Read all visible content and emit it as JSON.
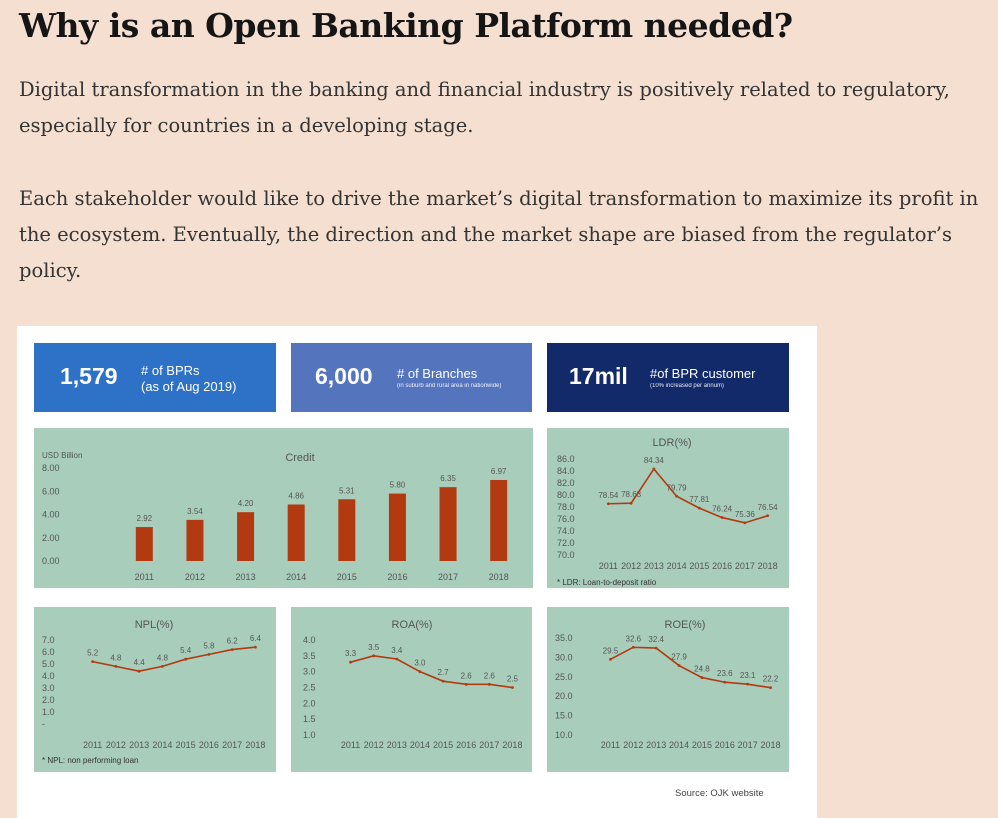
{
  "heading": "Why is an Open Banking Platform needed?",
  "paragraphs": [
    "Digital transformation in the banking and financial industry is positively related to regulatory, especially for countries in a developing stage.",
    "Each stakeholder would like to drive the market’s digital transformation to maximize its profit in the ecosystem. Eventually, the direction and the market shape are biased from the regulator’s policy."
  ],
  "stats": [
    {
      "value": "1,579",
      "label_line1": "# of BPRs",
      "label_line2": "(as of Aug 2019)",
      "sub": "",
      "color": "#2e72c8"
    },
    {
      "value": "6,000",
      "label_line1": "# of Branches",
      "label_line2": "",
      "sub": "(in suburb and rural area in nationwide)",
      "color": "#5474be"
    },
    {
      "value": "17mil",
      "label_line1": "#of BPR customer",
      "label_line2": "",
      "sub": "(10% increased per annum)",
      "color": "#12296a"
    }
  ],
  "source": "Source: OJK website",
  "chart_data": [
    {
      "type": "bar",
      "title": "Credit",
      "ylabel": "USD Billion",
      "categories": [
        "2011",
        "2012",
        "2013",
        "2014",
        "2015",
        "2016",
        "2017",
        "2018"
      ],
      "values": [
        2.92,
        3.54,
        4.2,
        4.86,
        5.31,
        5.8,
        6.35,
        6.97
      ],
      "value_labels": [
        "2.92",
        "3.54",
        "4.20",
        "4.86",
        "5.31",
        "5.80",
        "6.35",
        "6.97"
      ],
      "yticks": [
        "8.00",
        "6.00",
        "4.00",
        "2.00",
        "0.00"
      ],
      "ylim": [
        0,
        8
      ],
      "bar_color": "#b23a10"
    },
    {
      "type": "line",
      "title": "LDR(%)",
      "x": [
        "2011",
        "2012",
        "2013",
        "2014",
        "2015",
        "2016",
        "2017",
        "2018"
      ],
      "values": [
        78.54,
        78.63,
        84.34,
        79.79,
        77.81,
        76.24,
        75.36,
        76.54
      ],
      "value_labels": [
        "78.54",
        "78.63",
        "84.34",
        "79.79",
        "77.81",
        "76.24",
        "75.36",
        "76.54"
      ],
      "yticks": [
        "86.0",
        "84.0",
        "82.0",
        "80.0",
        "78.0",
        "76.0",
        "74.0",
        "72.0",
        "70.0"
      ],
      "ylim": [
        70,
        86
      ],
      "note": "* LDR: Loan-to-deposit ratio",
      "line_color": "#b23a10"
    },
    {
      "type": "line",
      "title": "NPL(%)",
      "x": [
        "2011",
        "2012",
        "2013",
        "2014",
        "2015",
        "2016",
        "2017",
        "2018"
      ],
      "values": [
        5.2,
        4.8,
        4.4,
        4.8,
        5.4,
        5.8,
        6.2,
        6.4
      ],
      "value_labels": [
        "5.2",
        "4.8",
        "4.4",
        "4.8",
        "5.4",
        "5.8",
        "6.2",
        "6.4"
      ],
      "yticks": [
        "7.0",
        "6.0",
        "5.0",
        "4.0",
        "3.0",
        "2.0",
        "1.0",
        "-"
      ],
      "ylim": [
        0,
        7
      ],
      "note": "* NPL: non performing loan",
      "line_color": "#b23a10"
    },
    {
      "type": "line",
      "title": "ROA(%)",
      "x": [
        "2011",
        "2012",
        "2013",
        "2014",
        "2015",
        "2016",
        "2017",
        "2018"
      ],
      "values": [
        3.3,
        3.5,
        3.4,
        3.0,
        2.7,
        2.6,
        2.6,
        2.5
      ],
      "value_labels": [
        "3.3",
        "3.5",
        "3.4",
        "3.0",
        "2.7",
        "2.6",
        "2.6",
        "2.5"
      ],
      "yticks": [
        "4.0",
        "3.5",
        "3.0",
        "2.5",
        "2.0",
        "1.5",
        "1.0"
      ],
      "ylim": [
        1,
        4
      ],
      "note": "",
      "line_color": "#b23a10"
    },
    {
      "type": "line",
      "title": "ROE(%)",
      "x": [
        "2011",
        "2012",
        "2013",
        "2014",
        "2015",
        "2016",
        "2017",
        "2018"
      ],
      "values": [
        29.5,
        32.6,
        32.4,
        27.9,
        24.8,
        23.6,
        23.1,
        22.2
      ],
      "value_labels": [
        "29.5",
        "32.6",
        "32.4",
        "27.9",
        "24.8",
        "23.6",
        "23.1",
        "22.2"
      ],
      "yticks": [
        "35.0",
        "30.0",
        "25.0",
        "20.0",
        "15.0",
        "10.0"
      ],
      "ylim": [
        10,
        35
      ],
      "note": "",
      "line_color": "#b23a10"
    }
  ]
}
